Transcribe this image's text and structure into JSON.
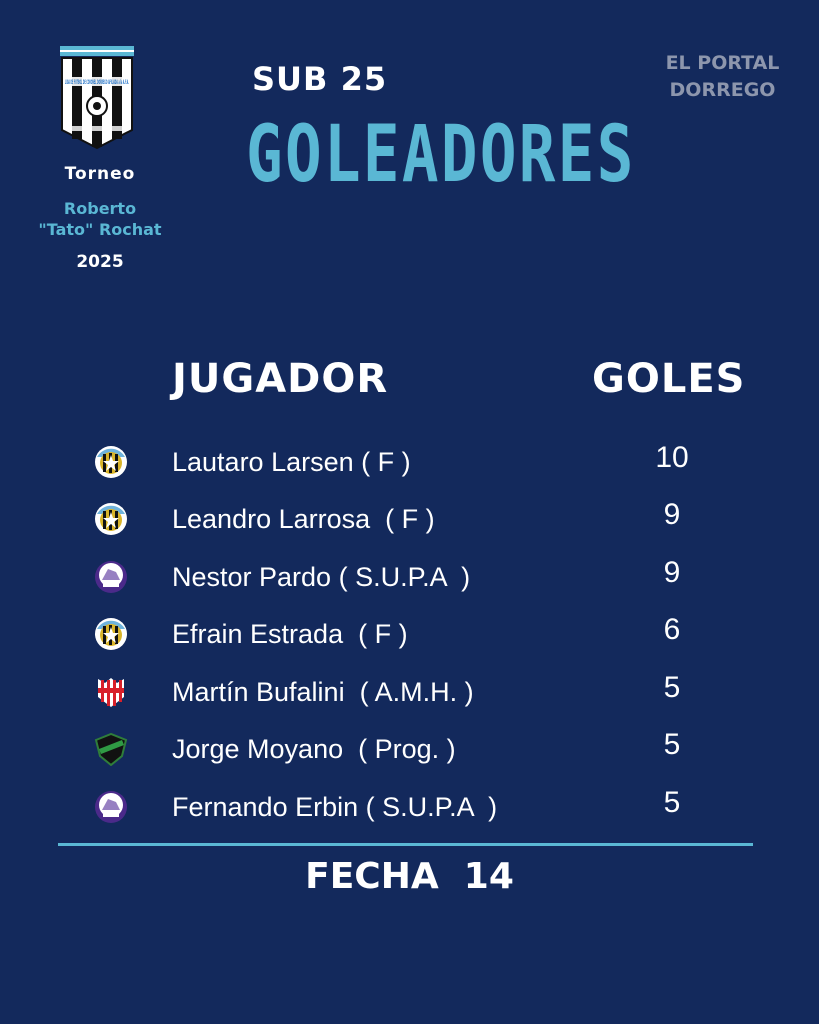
{
  "header": {
    "league_logo_text": "LIGA DE FUTBOL DE CORONEL DORREGO AFILIADA a la A.F.A.",
    "tournament_label": "Torneo",
    "tournament_name_line1": "Roberto",
    "tournament_name_line2": "\"Tato\" Rochat",
    "year": "2025",
    "category": "SUB 25",
    "title": "GOLEADORES",
    "brand_line1": "EL PORTAL",
    "brand_line2": "DORREGO"
  },
  "table": {
    "col_player": "JUGADOR",
    "col_goals": "GOLES",
    "rows": [
      {
        "player": "Lautaro Larsen ( F )",
        "goals": "10",
        "badge": "fortin-crest"
      },
      {
        "player": "Leandro Larrosa  ( F )",
        "goals": "9",
        "badge": "fortin-crest"
      },
      {
        "player": "Nestor Pardo ( S.U.P.A  )",
        "goals": "9",
        "badge": "supa-crest"
      },
      {
        "player": "Efrain Estrada  ( F )",
        "goals": "6",
        "badge": "fortin-crest"
      },
      {
        "player": "Martín Bufalini  ( A.M.H. )",
        "goals": "5",
        "badge": "amh-crest"
      },
      {
        "player": "Jorge Moyano  ( Prog. )",
        "goals": "5",
        "badge": "progreso-crest"
      },
      {
        "player": "Fernando Erbin ( S.U.P.A  )",
        "goals": "5",
        "badge": "supa-crest"
      }
    ]
  },
  "footer": {
    "fecha": "FECHA  14"
  },
  "colors": {
    "background": "#13295c",
    "accent": "#5ab7d4",
    "text": "#ffffff",
    "brand": "#8d96ad"
  }
}
